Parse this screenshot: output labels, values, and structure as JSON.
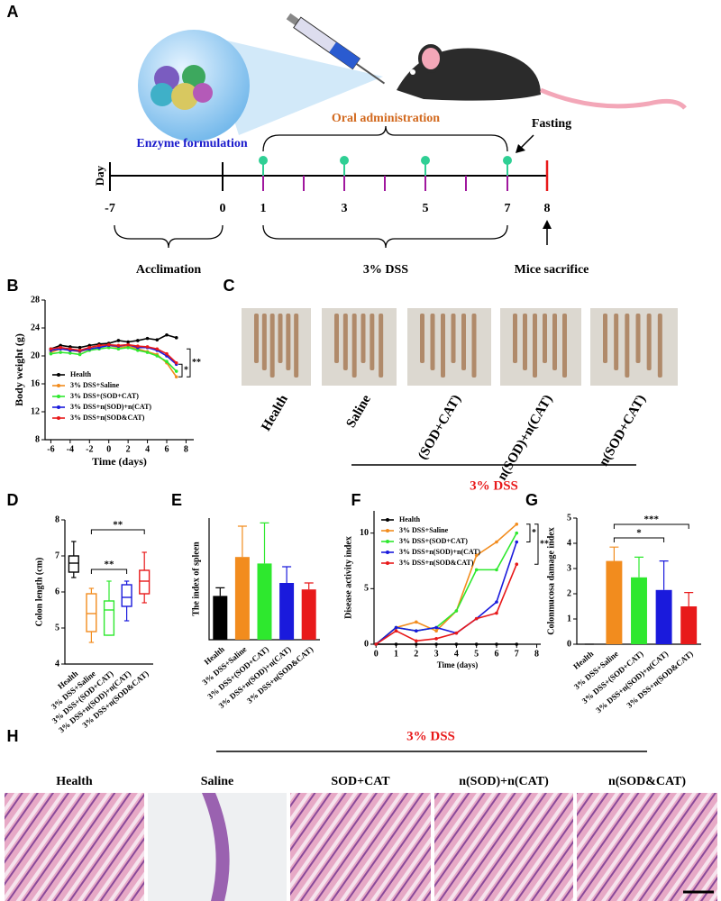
{
  "panel_letters": [
    "A",
    "B",
    "C",
    "D",
    "E",
    "F",
    "G",
    "H"
  ],
  "timeline": {
    "enzyme_label": "Enzyme formulation",
    "oral_label": "Oral administration",
    "fasting_label": "Fasting",
    "axis_label": "Day",
    "day_labels": [
      "-7",
      "0",
      "1",
      "3",
      "5",
      "7",
      "8"
    ],
    "phases": [
      "Acclimation",
      "3% DSS",
      "Mice sacrifice"
    ]
  },
  "chart_data": [
    {
      "type": "line",
      "x": [
        -6,
        -5,
        -4,
        -3,
        -2,
        -1,
        0,
        1,
        2,
        3,
        4,
        5,
        6,
        7
      ],
      "xlim": [
        -6.6,
        8.8
      ],
      "xticks": [
        -6,
        -4,
        -2,
        0,
        2,
        4,
        6,
        8
      ],
      "ylim": [
        8,
        28
      ],
      "yticks": [
        8,
        12,
        16,
        20,
        24,
        28
      ],
      "xlabel": "Time (days)",
      "ylabel": "Body weight (g)",
      "legend": "lower left",
      "series": [
        {
          "name": "Health",
          "color": "#000000",
          "values": [
            21,
            21.5,
            21.3,
            21.2,
            21.5,
            21.7,
            21.8,
            22.2,
            22,
            22.2,
            22.5,
            22.3,
            23,
            22.6
          ]
        },
        {
          "name": "3% DSS+Saline",
          "color": "#f28c1e",
          "values": [
            20.5,
            21,
            20.8,
            20.6,
            21,
            21.3,
            21.5,
            21.2,
            21.4,
            21,
            20.6,
            20.2,
            19,
            17
          ]
        },
        {
          "name": "3% DSS+(SOD+CAT)",
          "color": "#2ee82e",
          "values": [
            20.3,
            20.5,
            20.4,
            20.2,
            20.8,
            21,
            21.2,
            21,
            21.2,
            20.8,
            20.5,
            20,
            19.2,
            17.8
          ]
        },
        {
          "name": "3% DSS+n(SOD)+n(CAT)",
          "color": "#1a1adc",
          "values": [
            20.8,
            21,
            20.8,
            20.7,
            21,
            21.2,
            21.5,
            21.4,
            21.6,
            21.2,
            21.2,
            20.8,
            20,
            18.8
          ]
        },
        {
          "name": "3% DSS+n(SOD&CAT)",
          "color": "#e8191a",
          "values": [
            21,
            21.2,
            21,
            20.8,
            21.2,
            21.5,
            21.6,
            21.5,
            21.6,
            21.4,
            21.3,
            21,
            20.3,
            19
          ]
        }
      ],
      "annotations": [
        "*",
        "**"
      ]
    },
    {
      "type": "box",
      "categories": [
        "Health",
        "3% DSS+Saline",
        "3% DSS+(SOD+CAT)",
        "3% DSS+n(SOD)+n(CAT)",
        "3% DSS+n(SOD&CAT)"
      ],
      "colors": [
        "#000000",
        "#f28c1e",
        "#2ee82e",
        "#1a1adc",
        "#e8191a"
      ],
      "stats": [
        {
          "min": 6.4,
          "q1": 6.55,
          "median": 6.8,
          "q3": 7.0,
          "max": 7.4
        },
        {
          "min": 4.6,
          "q1": 4.9,
          "median": 5.4,
          "q3": 5.95,
          "max": 6.1
        },
        {
          "min": 4.8,
          "q1": 4.8,
          "median": 5.5,
          "q3": 5.75,
          "max": 6.3
        },
        {
          "min": 5.2,
          "q1": 5.6,
          "median": 5.85,
          "q3": 6.2,
          "max": 6.3
        },
        {
          "min": 5.7,
          "q1": 5.95,
          "median": 6.3,
          "q3": 6.6,
          "max": 7.1
        }
      ],
      "ylim": [
        4,
        8
      ],
      "yticks": [
        4,
        5,
        6,
        7,
        8
      ],
      "ylabel": "Colon length (cm)",
      "annotations": [
        "**",
        "**"
      ]
    },
    {
      "type": "bar",
      "categories": [
        "Health",
        "3% DSS+Saline",
        "3% DSS+(SOD+CAT)",
        "3% DSS+n(SOD)+n(CAT)",
        "3% DSS+n(SOD&CAT)"
      ],
      "values": [
        0.27,
        0.51,
        0.47,
        0.35,
        0.31
      ],
      "errors": [
        0.05,
        0.19,
        0.25,
        0.1,
        0.04
      ],
      "colors": [
        "#000000",
        "#f28c1e",
        "#2ee82e",
        "#1a1adc",
        "#e8191a"
      ],
      "ylim": [
        0,
        0.75
      ],
      "ylabel": "The index of spleen"
    },
    {
      "type": "line",
      "x": [
        0,
        1,
        2,
        3,
        4,
        5,
        6,
        7
      ],
      "xlim": [
        -0.1,
        8.2
      ],
      "xticks": [
        0,
        1,
        2,
        3,
        4,
        5,
        6,
        7,
        8
      ],
      "ylim": [
        0,
        12
      ],
      "yticks": [
        0,
        5,
        10
      ],
      "xlabel": "Time (days)",
      "ylabel": "Disease activity index",
      "legend": "upper left",
      "series": [
        {
          "name": "Health",
          "color": "#000000",
          "values": [
            0,
            0,
            0,
            0,
            0,
            0,
            0,
            0
          ]
        },
        {
          "name": "3% DSS+Saline",
          "color": "#f28c1e",
          "values": [
            0,
            1.5,
            2,
            1.2,
            3,
            8,
            9.2,
            10.8
          ]
        },
        {
          "name": "3% DSS+(SOD+CAT)",
          "color": "#2ee82e",
          "values": [
            0,
            1.5,
            1.2,
            1.5,
            3,
            6.7,
            6.7,
            10
          ]
        },
        {
          "name": "3% DSS+n(SOD)+n(CAT)",
          "color": "#1a1adc",
          "values": [
            0,
            1.5,
            1.2,
            1.5,
            1,
            2.3,
            3.8,
            9.2
          ]
        },
        {
          "name": "3% DSS+n(SOD&CAT)",
          "color": "#e8191a",
          "values": [
            0,
            1.2,
            0.3,
            0.5,
            1,
            2.3,
            2.8,
            7.2
          ]
        }
      ],
      "annotations": [
        "*",
        "**"
      ]
    },
    {
      "type": "bar",
      "categories": [
        "Health",
        "3% DSS+Saline",
        "3% DSS+(SOD+CAT)",
        "3% DSS+n(SOD)+n(CAT)",
        "3% DSS+n(SOD&CAT)"
      ],
      "values": [
        0,
        3.3,
        2.65,
        2.15,
        1.5
      ],
      "errors": [
        0,
        0.55,
        0.8,
        1.15,
        0.55
      ],
      "colors": [
        "#000000",
        "#f28c1e",
        "#2ee82e",
        "#1a1adc",
        "#e8191a"
      ],
      "ylim": [
        0,
        5
      ],
      "yticks": [
        0,
        1,
        2,
        3,
        4,
        5
      ],
      "ylabel": "Colonmucosa damage index",
      "annotations": [
        "***",
        "*"
      ]
    }
  ],
  "photos": {
    "labels": [
      "Health",
      "Saline",
      "(SOD+CAT)",
      "n(SOD)+n(CAT)",
      "n(SOD+CAT)"
    ],
    "group_label": "3% DSS"
  },
  "histology": {
    "titles": [
      "Health",
      "Saline",
      "SOD+CAT",
      "n(SOD)+n(CAT)",
      "n(SOD&CAT)"
    ],
    "group_label": "3% DSS"
  }
}
